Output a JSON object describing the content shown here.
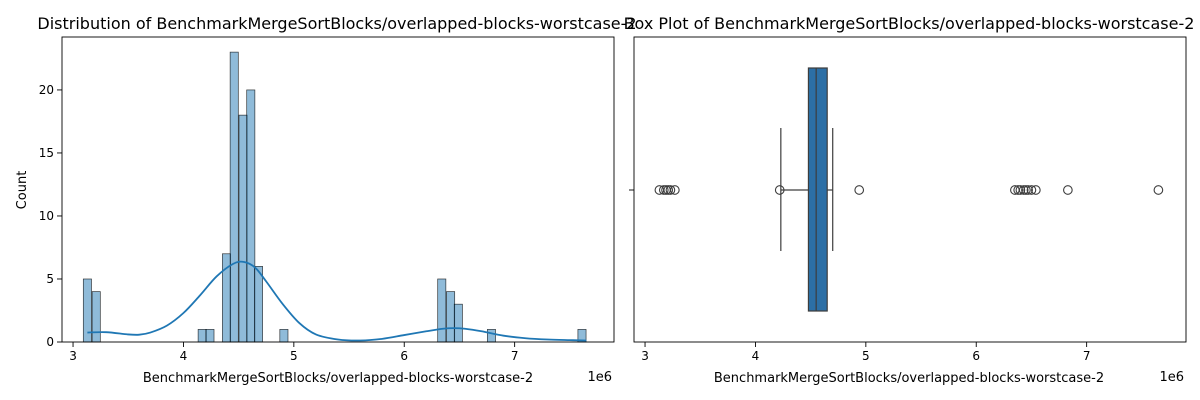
{
  "chart_data": [
    {
      "type": "histogram",
      "title": "Distribution of BenchmarkMergeSortBlocks/overlapped-blocks-worstcase-2",
      "xlabel": "BenchmarkMergeSortBlocks/overlapped-blocks-worstcase-2",
      "ylabel": "Count",
      "x_offset_label": "1e6",
      "xlim": [
        2.9,
        7.9
      ],
      "ylim": [
        0,
        24.2
      ],
      "xticks": [
        3,
        4,
        5,
        6,
        7
      ],
      "yticks": [
        0,
        5,
        10,
        15,
        20
      ],
      "bar_color": "#1f77b4",
      "bin_width": 0.074,
      "bars": [
        {
          "x": 3.13,
          "count": 5
        },
        {
          "x": 3.21,
          "count": 4
        },
        {
          "x": 4.17,
          "count": 1
        },
        {
          "x": 4.24,
          "count": 1
        },
        {
          "x": 4.39,
          "count": 7
        },
        {
          "x": 4.46,
          "count": 23
        },
        {
          "x": 4.54,
          "count": 18
        },
        {
          "x": 4.61,
          "count": 20
        },
        {
          "x": 4.68,
          "count": 6
        },
        {
          "x": 4.91,
          "count": 1
        },
        {
          "x": 6.34,
          "count": 5
        },
        {
          "x": 6.42,
          "count": 4
        },
        {
          "x": 6.49,
          "count": 3
        },
        {
          "x": 6.79,
          "count": 1
        },
        {
          "x": 7.61,
          "count": 1
        }
      ],
      "kde": {
        "x": [
          3.13,
          3.3,
          3.5,
          3.6,
          3.7,
          3.85,
          4.0,
          4.15,
          4.3,
          4.45,
          4.55,
          4.65,
          4.75,
          4.9,
          5.05,
          5.2,
          5.4,
          5.6,
          5.8,
          6.0,
          6.2,
          6.35,
          6.45,
          6.55,
          6.7,
          6.9,
          7.1,
          7.3,
          7.5,
          7.65
        ],
        "y": [
          0.75,
          0.78,
          0.6,
          0.58,
          0.75,
          1.3,
          2.3,
          3.7,
          5.2,
          6.2,
          6.35,
          5.9,
          4.8,
          3.0,
          1.5,
          0.6,
          0.2,
          0.12,
          0.25,
          0.55,
          0.85,
          1.05,
          1.1,
          1.05,
          0.85,
          0.5,
          0.3,
          0.2,
          0.15,
          0.12
        ]
      }
    },
    {
      "type": "box",
      "title": "Box Plot of BenchmarkMergeSortBlocks/overlapped-blocks-worstcase-2",
      "xlabel": "BenchmarkMergeSortBlocks/overlapped-blocks-worstcase-2",
      "x_offset_label": "1e6",
      "xlim": [
        2.9,
        7.9
      ],
      "xticks": [
        3,
        4,
        5,
        6,
        7
      ],
      "box_color": "#2c6fa6",
      "q1": 4.48,
      "median": 4.55,
      "q3": 4.65,
      "whisker_low": 4.23,
      "whisker_high": 4.7,
      "outliers": [
        3.13,
        3.17,
        3.19,
        3.21,
        3.23,
        3.27,
        4.22,
        4.94,
        6.35,
        6.38,
        6.4,
        6.43,
        6.45,
        6.47,
        6.5,
        6.54,
        6.83,
        7.65
      ]
    }
  ]
}
